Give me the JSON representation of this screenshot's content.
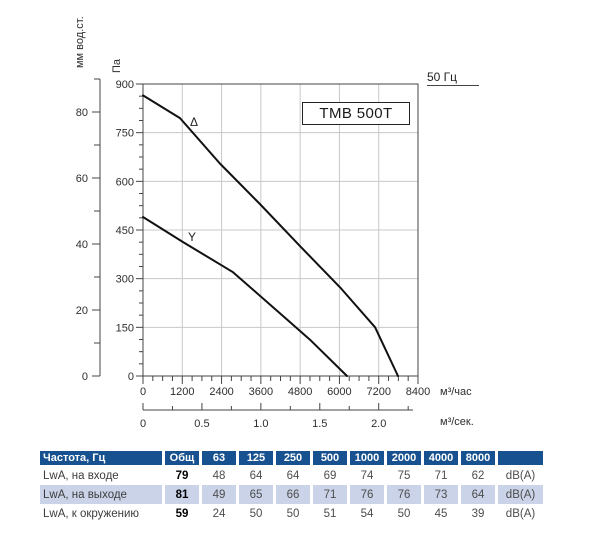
{
  "chart_data": {
    "type": "line",
    "title": "TMB 500T",
    "frequency_label": "50 Гц",
    "x_axis_hour": {
      "unit": "м³/час",
      "ticks": [
        0,
        1200,
        2400,
        3600,
        4800,
        6000,
        7200,
        8400
      ],
      "minor_step": 300,
      "range": [
        0,
        8400
      ]
    },
    "x_axis_sec": {
      "unit": "м³/сек.",
      "tick_labels": [
        "0",
        "0.5",
        "1.0",
        "1.5",
        "2.0"
      ],
      "tick_values": [
        0,
        0.5,
        1,
        1.5,
        2
      ],
      "minor_step": 0.25,
      "range": [
        0,
        2.25
      ],
      "hours_per_sec": 3600
    },
    "y_axis_pa": {
      "unit": "Па",
      "ticks": [
        0,
        150,
        300,
        450,
        600,
        750,
        900
      ],
      "minor_step": 37.5,
      "range": [
        0,
        900
      ]
    },
    "y_axis_mm": {
      "unit": "мм вод.ст.",
      "ticks": [
        0,
        20,
        40,
        60,
        80
      ],
      "minor_step": 10,
      "range": [
        0,
        90
      ]
    },
    "grid": true,
    "legend": "none",
    "series": [
      {
        "name": "Δ",
        "points": [
          [
            0,
            865
          ],
          [
            1130,
            795
          ],
          [
            2350,
            655
          ],
          [
            3570,
            530
          ],
          [
            4800,
            400
          ],
          [
            6020,
            273
          ],
          [
            7090,
            150
          ],
          [
            7790,
            0
          ]
        ]
      },
      {
        "name": "Y",
        "points": [
          [
            0,
            490
          ],
          [
            1220,
            413
          ],
          [
            2750,
            320
          ],
          [
            4400,
            174
          ],
          [
            5100,
            112
          ],
          [
            6230,
            0
          ]
        ]
      }
    ]
  },
  "table": {
    "header": [
      "Частота, Гц",
      "Общ",
      "63",
      "125",
      "250",
      "500",
      "1000",
      "2000",
      "4000",
      "8000",
      ""
    ],
    "rows": [
      {
        "label": "LwA, на входе",
        "total": "79",
        "values": [
          "48",
          "64",
          "64",
          "69",
          "74",
          "75",
          "71",
          "62"
        ],
        "unit": "dB(A)"
      },
      {
        "label": "LwA, на выходе",
        "total": "81",
        "values": [
          "49",
          "65",
          "66",
          "71",
          "76",
          "76",
          "73",
          "64"
        ],
        "unit": "dB(A)"
      },
      {
        "label": "LwA, к окружению",
        "total": "59",
        "values": [
          "24",
          "50",
          "50",
          "51",
          "54",
          "50",
          "45",
          "39"
        ],
        "unit": "dB(A)"
      }
    ]
  },
  "colors": {
    "header_blue": "#17518f",
    "row_alt_blue": "#cbd3e8",
    "curve": "#111111",
    "grid": "#c8c8c8",
    "axis": "#444444"
  }
}
